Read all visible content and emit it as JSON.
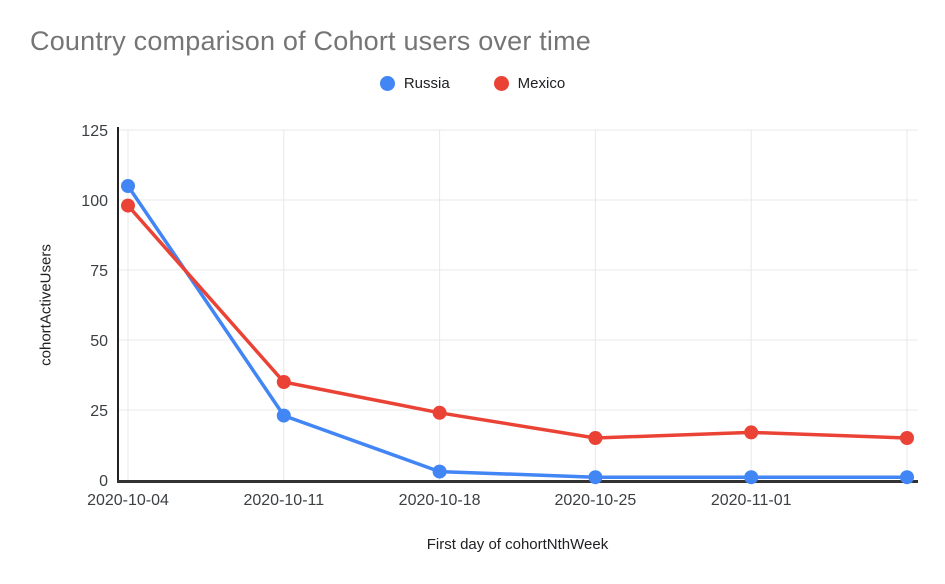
{
  "page": {
    "background": "#ffffff"
  },
  "header": {
    "title": "Country comparison of Cohort users over time",
    "title_color": "#757575"
  },
  "axes": {
    "y_title": "cohortActiveUsers",
    "x_title": "First day of cohortNthWeek",
    "tick_color": "#3c4043",
    "gridline_color": "#e8e8e8",
    "axis_line_color": "#333333"
  },
  "chart_data": {
    "type": "line",
    "title": "Country comparison of Cohort users over time",
    "xlabel": "First day of cohortNthWeek",
    "ylabel": "cohortActiveUsers",
    "categories": [
      "2020-10-04",
      "2020-10-11",
      "2020-10-18",
      "2020-10-25",
      "2020-11-01",
      ""
    ],
    "series": [
      {
        "name": "Russia",
        "color": "#4285F4",
        "values": [
          105,
          23,
          3,
          1,
          1,
          1
        ]
      },
      {
        "name": "Mexico",
        "color": "#EA4335",
        "values": [
          98,
          35,
          24,
          15,
          17,
          15
        ]
      }
    ],
    "ylim": [
      0,
      125
    ],
    "yticks": [
      0,
      25,
      50,
      75,
      100,
      125
    ],
    "grid": true,
    "legend_position": "top",
    "point_marker": "circle"
  }
}
